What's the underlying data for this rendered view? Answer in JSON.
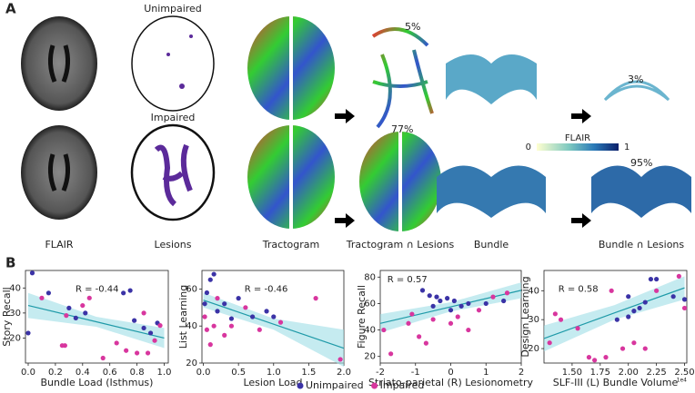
{
  "panel_a": {
    "label": "A",
    "row_top": "Unimpaired",
    "row_bottom": "Impaired",
    "columns": [
      "FLAIR",
      "Lesions",
      "Tractogram",
      "Tractogram ∩ Lesions",
      "Bundle",
      "Bundle ∩ Lesions"
    ],
    "percent_top_tractogram": "5%",
    "percent_bottom_tractogram": "77%",
    "percent_top_bundle": "3%",
    "percent_bottom_bundle": "95%",
    "colorbar": {
      "title": "FLAIR",
      "min": "0",
      "max": "1"
    }
  },
  "panel_b": {
    "label": "B"
  },
  "chart_data": [
    {
      "type": "scatter",
      "xlabel": "Bundle Load (Isthmus)",
      "ylabel": "Story Recall",
      "annotation": "R = -0.44",
      "xlim": [
        -0.02,
        1.03
      ],
      "ylim": [
        10,
        47
      ],
      "xticks": [
        {
          "value": 0,
          "label": "0.0"
        },
        0.2,
        0.4,
        0.6,
        0.8,
        {
          "value": 1,
          "label": "1.0"
        }
      ],
      "yticks": [
        20,
        30,
        40
      ],
      "series": [
        {
          "name": "Unimpaired",
          "color": "#3b33a6",
          "x": [
            0.03,
            0.0,
            0.15,
            0.3,
            0.35,
            0.42,
            0.7,
            0.75,
            0.78,
            0.85,
            0.9,
            0.95
          ],
          "values": [
            46,
            22,
            38,
            32,
            28,
            30,
            38,
            39,
            27,
            24,
            22,
            26
          ]
        },
        {
          "name": "Impaired",
          "color": "#d8369e",
          "x": [
            0.1,
            0.25,
            0.27,
            0.28,
            0.4,
            0.45,
            0.55,
            0.65,
            0.72,
            0.8,
            0.88,
            0.93,
            0.97,
            0.85
          ],
          "values": [
            36,
            17,
            17,
            29,
            33,
            36,
            12,
            18,
            15,
            14,
            14,
            19,
            25,
            30
          ]
        }
      ],
      "fit": {
        "x": [
          0,
          0.5,
          1
        ],
        "y": [
          33,
          26.5,
          20
        ],
        "lower": [
          28,
          24.5,
          16
        ],
        "upper": [
          38,
          28.5,
          24
        ]
      }
    },
    {
      "type": "scatter",
      "xlabel": "Lesion Load",
      "ylabel": "List Learning",
      "annotation": "R = -0.46",
      "xlim": [
        -0.02,
        2.0
      ],
      "ylim": [
        20,
        70
      ],
      "xticks": [
        {
          "value": 0,
          "label": "0.0"
        },
        0.5,
        {
          "value": 1,
          "label": "1.0"
        },
        1.5,
        {
          "value": 2,
          "label": "2.0"
        }
      ],
      "yticks": [
        20,
        40,
        60
      ],
      "series": [
        {
          "name": "Unimpaired",
          "color": "#3b33a6",
          "x": [
            0.02,
            0.05,
            0.1,
            0.15,
            0.2,
            0.3,
            0.4,
            0.5,
            0.7,
            0.9,
            1.0
          ],
          "values": [
            52,
            58,
            65,
            68,
            48,
            52,
            44,
            55,
            45,
            48,
            45
          ]
        },
        {
          "name": "Impaired",
          "color": "#d8369e",
          "x": [
            0.02,
            0.05,
            0.1,
            0.15,
            0.2,
            0.3,
            0.4,
            0.6,
            0.8,
            1.1,
            1.6,
            1.95
          ],
          "values": [
            45,
            38,
            30,
            40,
            55,
            35,
            40,
            50,
            38,
            42,
            55,
            22
          ]
        }
      ],
      "fit": {
        "x": [
          0,
          1,
          2
        ],
        "y": [
          54,
          41,
          28
        ],
        "lower": [
          50,
          38,
          18
        ],
        "upper": [
          58,
          44,
          38
        ]
      }
    },
    {
      "type": "scatter",
      "xlabel": "Striato-parietal (R) Lesionometry",
      "ylabel": "Figure Recall",
      "annotation": "R = 0.57",
      "xlim": [
        -2,
        2
      ],
      "ylim": [
        15,
        85
      ],
      "xticks": [
        -2,
        -1,
        0,
        1,
        2
      ],
      "yticks": [
        20,
        40,
        60,
        80
      ],
      "series": [
        {
          "name": "Unimpaired",
          "color": "#3b33a6",
          "x": [
            -0.8,
            -0.6,
            -0.4,
            -0.3,
            -0.1,
            0,
            0.1,
            0.3,
            0.5,
            1.0,
            1.5,
            -0.5
          ],
          "values": [
            70,
            66,
            65,
            62,
            64,
            55,
            62,
            58,
            60,
            60,
            62,
            58
          ]
        },
        {
          "name": "Impaired",
          "color": "#d8369e",
          "x": [
            -1.9,
            -1.7,
            -1.2,
            -1.1,
            -0.9,
            -0.7,
            -0.5,
            0,
            0.2,
            0.5,
            0.8,
            1.2,
            1.6
          ],
          "values": [
            40,
            22,
            45,
            52,
            35,
            30,
            48,
            45,
            50,
            40,
            55,
            65,
            68
          ]
        }
      ],
      "fit": {
        "x": [
          -2,
          0,
          2
        ],
        "y": [
          45,
          57.5,
          70
        ],
        "lower": [
          38,
          54,
          64
        ],
        "upper": [
          52,
          61,
          76
        ]
      }
    },
    {
      "type": "scatter",
      "xlabel": "SLF-III (L) Bundle Volume",
      "ylabel": "Design Learning",
      "annotation": "R = 0.58",
      "x_offset_label": "1e4",
      "xlim": [
        12500,
        25200
      ],
      "ylim": [
        15,
        47
      ],
      "xticks": [
        {
          "value": 15000,
          "label": "1.50"
        },
        {
          "value": 17500,
          "label": "1.75"
        },
        {
          "value": 20000,
          "label": "2.00"
        },
        {
          "value": 22500,
          "label": "2.25"
        },
        {
          "value": 25000,
          "label": "2.50"
        }
      ],
      "yticks": [
        20,
        30,
        40
      ],
      "series": [
        {
          "name": "Unimpaired",
          "color": "#3b33a6",
          "x": [
            19000,
            20000,
            20500,
            21000,
            21500,
            22000,
            22500,
            24000,
            25000,
            20000
          ],
          "values": [
            30,
            31,
            33,
            34,
            36,
            44,
            44,
            38,
            37,
            38
          ]
        },
        {
          "name": "Impaired",
          "color": "#d8369e",
          "x": [
            13000,
            13500,
            14000,
            15500,
            16500,
            17000,
            18000,
            18500,
            19500,
            20500,
            21500,
            22500,
            24500,
            25000
          ],
          "values": [
            22,
            32,
            30,
            27,
            17,
            16,
            17,
            40,
            20,
            22,
            20,
            40,
            45,
            34
          ]
        }
      ],
      "fit": {
        "x": [
          12500,
          18750,
          25000
        ],
        "y": [
          23.5,
          32.3,
          41
        ],
        "lower": [
          19,
          30,
          37
        ],
        "upper": [
          28,
          35,
          45
        ]
      }
    }
  ]
}
